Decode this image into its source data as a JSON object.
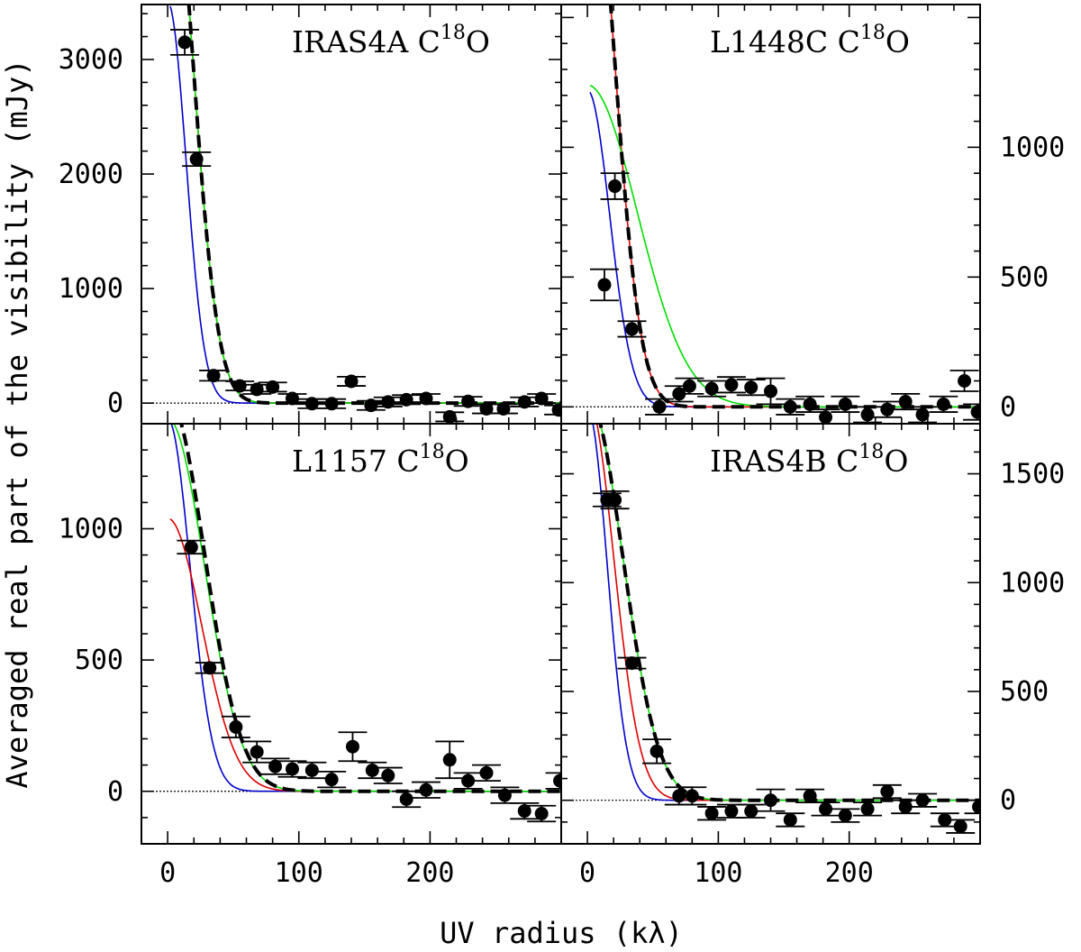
{
  "figure": {
    "xlabel": "UV radius (kλ)",
    "ylabel": "Averaged real part of the visibility (mJy)"
  },
  "chart_data": [
    {
      "type": "scatter",
      "title": "IRAS4A C",
      "title_sup": "18",
      "title_tail": "O",
      "xlim": [
        -20,
        300
      ],
      "ylim": [
        -180,
        3480
      ],
      "xticks_labeled": [],
      "yticks_labeled": [
        0,
        1000,
        2000,
        3000
      ],
      "y_side": "left",
      "points": [
        {
          "x": 13,
          "y": 3150,
          "err": 110
        },
        {
          "x": 22,
          "y": 2130,
          "err": 60
        },
        {
          "x": 35,
          "y": 240,
          "err": 45
        },
        {
          "x": 55,
          "y": 150,
          "err": 40
        },
        {
          "x": 68,
          "y": 120,
          "err": 40
        },
        {
          "x": 80,
          "y": 140,
          "err": 40
        },
        {
          "x": 95,
          "y": 40,
          "err": 40
        },
        {
          "x": 110,
          "y": -5,
          "err": 40
        },
        {
          "x": 125,
          "y": -5,
          "err": 40
        },
        {
          "x": 140,
          "y": 190,
          "err": 40
        },
        {
          "x": 155,
          "y": -20,
          "err": 40
        },
        {
          "x": 168,
          "y": 10,
          "err": 40
        },
        {
          "x": 182,
          "y": 30,
          "err": 40
        },
        {
          "x": 197,
          "y": 40,
          "err": 40
        },
        {
          "x": 215,
          "y": -120,
          "err": 40
        },
        {
          "x": 229,
          "y": 15,
          "err": 40
        },
        {
          "x": 243,
          "y": -50,
          "err": 40
        },
        {
          "x": 256,
          "y": -50,
          "err": 40
        },
        {
          "x": 272,
          "y": 10,
          "err": 40
        },
        {
          "x": 285,
          "y": 40,
          "err": 40
        },
        {
          "x": 298,
          "y": -60,
          "err": 40
        }
      ],
      "series": [
        {
          "name": "model-blue",
          "color": "#0000cc",
          "style": "solid",
          "amp": 3500,
          "sigma": 14,
          "offset": 0
        },
        {
          "name": "model-red",
          "color": "#dd0000",
          "style": "solid",
          "amp": 5000,
          "sigma": 19,
          "offset": 0
        },
        {
          "name": "model-green",
          "color": "#00dd00",
          "style": "solid",
          "amp": 5000,
          "sigma": 19,
          "offset": 0
        },
        {
          "name": "model-best",
          "color": "#000000",
          "style": "dashed",
          "amp": 5000,
          "sigma": 19,
          "offset": 0
        }
      ]
    },
    {
      "type": "scatter",
      "title": "L1448C C",
      "title_sup": "18",
      "title_tail": "O",
      "xlim": [
        -20,
        300
      ],
      "ylim": [
        -65,
        1550
      ],
      "xticks_labeled": [],
      "yticks_labeled": [
        0,
        500,
        1000
      ],
      "y_side": "right",
      "points": [
        {
          "x": 13,
          "y": 470,
          "err": 60
        },
        {
          "x": 21,
          "y": 850,
          "err": 50
        },
        {
          "x": 34,
          "y": 300,
          "err": 30
        },
        {
          "x": 55,
          "y": 0,
          "err": 30
        },
        {
          "x": 70,
          "y": 50,
          "err": 30
        },
        {
          "x": 78,
          "y": 80,
          "err": 30
        },
        {
          "x": 95,
          "y": 70,
          "err": 30
        },
        {
          "x": 110,
          "y": 85,
          "err": 30
        },
        {
          "x": 125,
          "y": 75,
          "err": 30
        },
        {
          "x": 140,
          "y": 60,
          "err": 50
        },
        {
          "x": 155,
          "y": 0,
          "err": 30
        },
        {
          "x": 170,
          "y": 10,
          "err": 30
        },
        {
          "x": 182,
          "y": -40,
          "err": 30
        },
        {
          "x": 197,
          "y": 10,
          "err": 30
        },
        {
          "x": 214,
          "y": -30,
          "err": 30
        },
        {
          "x": 229,
          "y": -10,
          "err": 30
        },
        {
          "x": 243,
          "y": 20,
          "err": 30
        },
        {
          "x": 256,
          "y": -30,
          "err": 30
        },
        {
          "x": 272,
          "y": 10,
          "err": 30
        },
        {
          "x": 288,
          "y": 100,
          "err": 40
        },
        {
          "x": 298,
          "y": -20,
          "err": 30
        }
      ],
      "series": [
        {
          "name": "model-blue",
          "color": "#0000cc",
          "style": "solid",
          "amp": 1220,
          "sigma": 17,
          "offset": 0
        },
        {
          "name": "model-red",
          "color": "#dd0000",
          "style": "solid",
          "amp": 2300,
          "sigma": 20,
          "offset": 0
        },
        {
          "name": "model-green",
          "color": "#00dd00",
          "style": "solid",
          "amp": 1240,
          "sigma": 38,
          "offset": 0
        },
        {
          "name": "model-best",
          "color": "#000000",
          "style": "dashed",
          "amp": 2300,
          "sigma": 20,
          "offset": 0
        }
      ]
    },
    {
      "type": "scatter",
      "title": "L1157 C",
      "title_sup": "18",
      "title_tail": "O",
      "xlim": [
        -20,
        300
      ],
      "ylim": [
        -200,
        1400
      ],
      "xticks_labeled": [
        0,
        100,
        200
      ],
      "yticks_labeled": [
        0,
        500,
        1000
      ],
      "y_side": "left",
      "points": [
        {
          "x": 18,
          "y": 930,
          "err": 25
        },
        {
          "x": 32,
          "y": 470,
          "err": 20
        },
        {
          "x": 52,
          "y": 245,
          "err": 40
        },
        {
          "x": 68,
          "y": 150,
          "err": 40
        },
        {
          "x": 82,
          "y": 95,
          "err": 30
        },
        {
          "x": 95,
          "y": 85,
          "err": 30
        },
        {
          "x": 110,
          "y": 80,
          "err": 30
        },
        {
          "x": 125,
          "y": 45,
          "err": 30
        },
        {
          "x": 141,
          "y": 170,
          "err": 55
        },
        {
          "x": 156,
          "y": 80,
          "err": 30
        },
        {
          "x": 168,
          "y": 60,
          "err": 30
        },
        {
          "x": 182,
          "y": -30,
          "err": 30
        },
        {
          "x": 197,
          "y": 5,
          "err": 30
        },
        {
          "x": 215,
          "y": 120,
          "err": 70
        },
        {
          "x": 229,
          "y": 40,
          "err": 30
        },
        {
          "x": 243,
          "y": 70,
          "err": 30
        },
        {
          "x": 257,
          "y": -15,
          "err": 30
        },
        {
          "x": 272,
          "y": -75,
          "err": 30
        },
        {
          "x": 285,
          "y": -85,
          "err": 30
        },
        {
          "x": 299,
          "y": 40,
          "err": 30
        }
      ],
      "series": [
        {
          "name": "model-blue",
          "color": "#0000cc",
          "style": "solid",
          "amp": 1420,
          "sigma": 17,
          "offset": 0
        },
        {
          "name": "model-red",
          "color": "#dd0000",
          "style": "solid",
          "amp": 1040,
          "sigma": 26,
          "offset": 0
        },
        {
          "name": "model-green",
          "color": "#00dd00",
          "style": "solid",
          "amp": 1420,
          "sigma": 28,
          "offset": 0
        },
        {
          "name": "model-best",
          "color": "#000000",
          "style": "dashed",
          "amp": 1500,
          "sigma": 28,
          "offset": 0
        }
      ]
    },
    {
      "type": "scatter",
      "title": "IRAS4B C",
      "title_sup": "18",
      "title_tail": "O",
      "xlim": [
        -20,
        300
      ],
      "ylim": [
        -200,
        1730
      ],
      "xticks_labeled": [
        0,
        100,
        200
      ],
      "yticks_labeled": [
        0,
        500,
        1000,
        1500
      ],
      "y_side": "right",
      "points": [
        {
          "x": 15,
          "y": 1380,
          "err": 30
        },
        {
          "x": 21,
          "y": 1380,
          "err": 40
        },
        {
          "x": 34,
          "y": 630,
          "err": 25
        },
        {
          "x": 53,
          "y": 225,
          "err": 55
        },
        {
          "x": 70,
          "y": 20,
          "err": 40
        },
        {
          "x": 80,
          "y": 20,
          "err": 40
        },
        {
          "x": 95,
          "y": -60,
          "err": 30
        },
        {
          "x": 110,
          "y": -50,
          "err": 30
        },
        {
          "x": 125,
          "y": -50,
          "err": 30
        },
        {
          "x": 140,
          "y": 0,
          "err": 50
        },
        {
          "x": 155,
          "y": -90,
          "err": 30
        },
        {
          "x": 170,
          "y": 20,
          "err": 30
        },
        {
          "x": 182,
          "y": -40,
          "err": 30
        },
        {
          "x": 197,
          "y": -70,
          "err": 30
        },
        {
          "x": 214,
          "y": -40,
          "err": 30
        },
        {
          "x": 229,
          "y": 40,
          "err": 30
        },
        {
          "x": 243,
          "y": -30,
          "err": 30
        },
        {
          "x": 256,
          "y": 0,
          "err": 30
        },
        {
          "x": 273,
          "y": -90,
          "err": 30
        },
        {
          "x": 285,
          "y": -120,
          "err": 30
        },
        {
          "x": 299,
          "y": -30,
          "err": 30
        }
      ],
      "series": [
        {
          "name": "model-blue",
          "color": "#0000cc",
          "style": "solid",
          "amp": 1800,
          "sigma": 15,
          "offset": 0
        },
        {
          "name": "model-red",
          "color": "#dd0000",
          "style": "solid",
          "amp": 1850,
          "sigma": 20,
          "offset": 0
        },
        {
          "name": "model-green",
          "color": "#00dd00",
          "style": "solid",
          "amp": 1850,
          "sigma": 27,
          "offset": 0
        },
        {
          "name": "model-best",
          "color": "#000000",
          "style": "dashed",
          "amp": 1850,
          "sigma": 27,
          "offset": 0
        }
      ]
    }
  ]
}
